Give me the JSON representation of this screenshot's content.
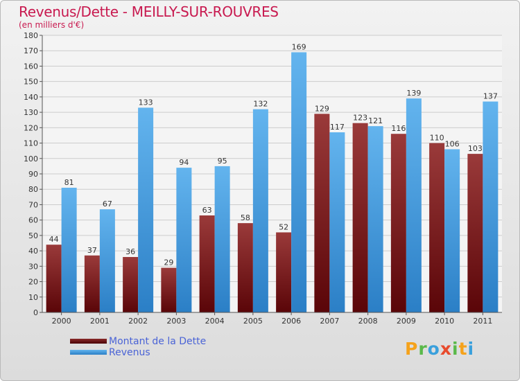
{
  "chart_data": {
    "type": "bar",
    "title": "Revenus/Dette - MEILLY-SUR-ROUVRES",
    "subtitle": "(en milliers d'€)",
    "categories": [
      "2000",
      "2001",
      "2002",
      "2003",
      "2004",
      "2005",
      "2006",
      "2007",
      "2008",
      "2009",
      "2010",
      "2011"
    ],
    "series": [
      {
        "name": "Montant de la Dette",
        "values": [
          44,
          37,
          36,
          29,
          63,
          58,
          52,
          129,
          123,
          116,
          110,
          103
        ]
      },
      {
        "name": "Revenus",
        "values": [
          81,
          67,
          133,
          94,
          95,
          132,
          169,
          117,
          121,
          139,
          106,
          137
        ]
      }
    ],
    "ylim": [
      0,
      180
    ],
    "yticks": [
      0,
      10,
      20,
      30,
      40,
      50,
      60,
      70,
      80,
      90,
      100,
      110,
      120,
      130,
      140,
      150,
      160,
      170,
      180
    ],
    "grid": true,
    "legend_position": "bottom-left"
  },
  "legend": {
    "items": [
      {
        "label": "Montant de la Dette",
        "color": "#6b0f12"
      },
      {
        "label": "Revenus",
        "color": "#3a8fd8"
      }
    ]
  },
  "colors": {
    "debt_light": "#9a3a3a",
    "debt_dark": "#5a0508",
    "rev_light": "#63b4ee",
    "rev_dark": "#2b7fc6",
    "title": "#c8194f"
  },
  "logo": {
    "letters": [
      {
        "ch": "P",
        "color": "#f5a21b"
      },
      {
        "ch": "r",
        "color": "#5ab94a"
      },
      {
        "ch": "o",
        "color": "#3aa0dc"
      },
      {
        "ch": "x",
        "color": "#e84b2d"
      },
      {
        "ch": "i",
        "color": "#5ab94a"
      },
      {
        "ch": "t",
        "color": "#f5a21b"
      },
      {
        "ch": "i",
        "color": "#3aa0dc"
      }
    ]
  }
}
